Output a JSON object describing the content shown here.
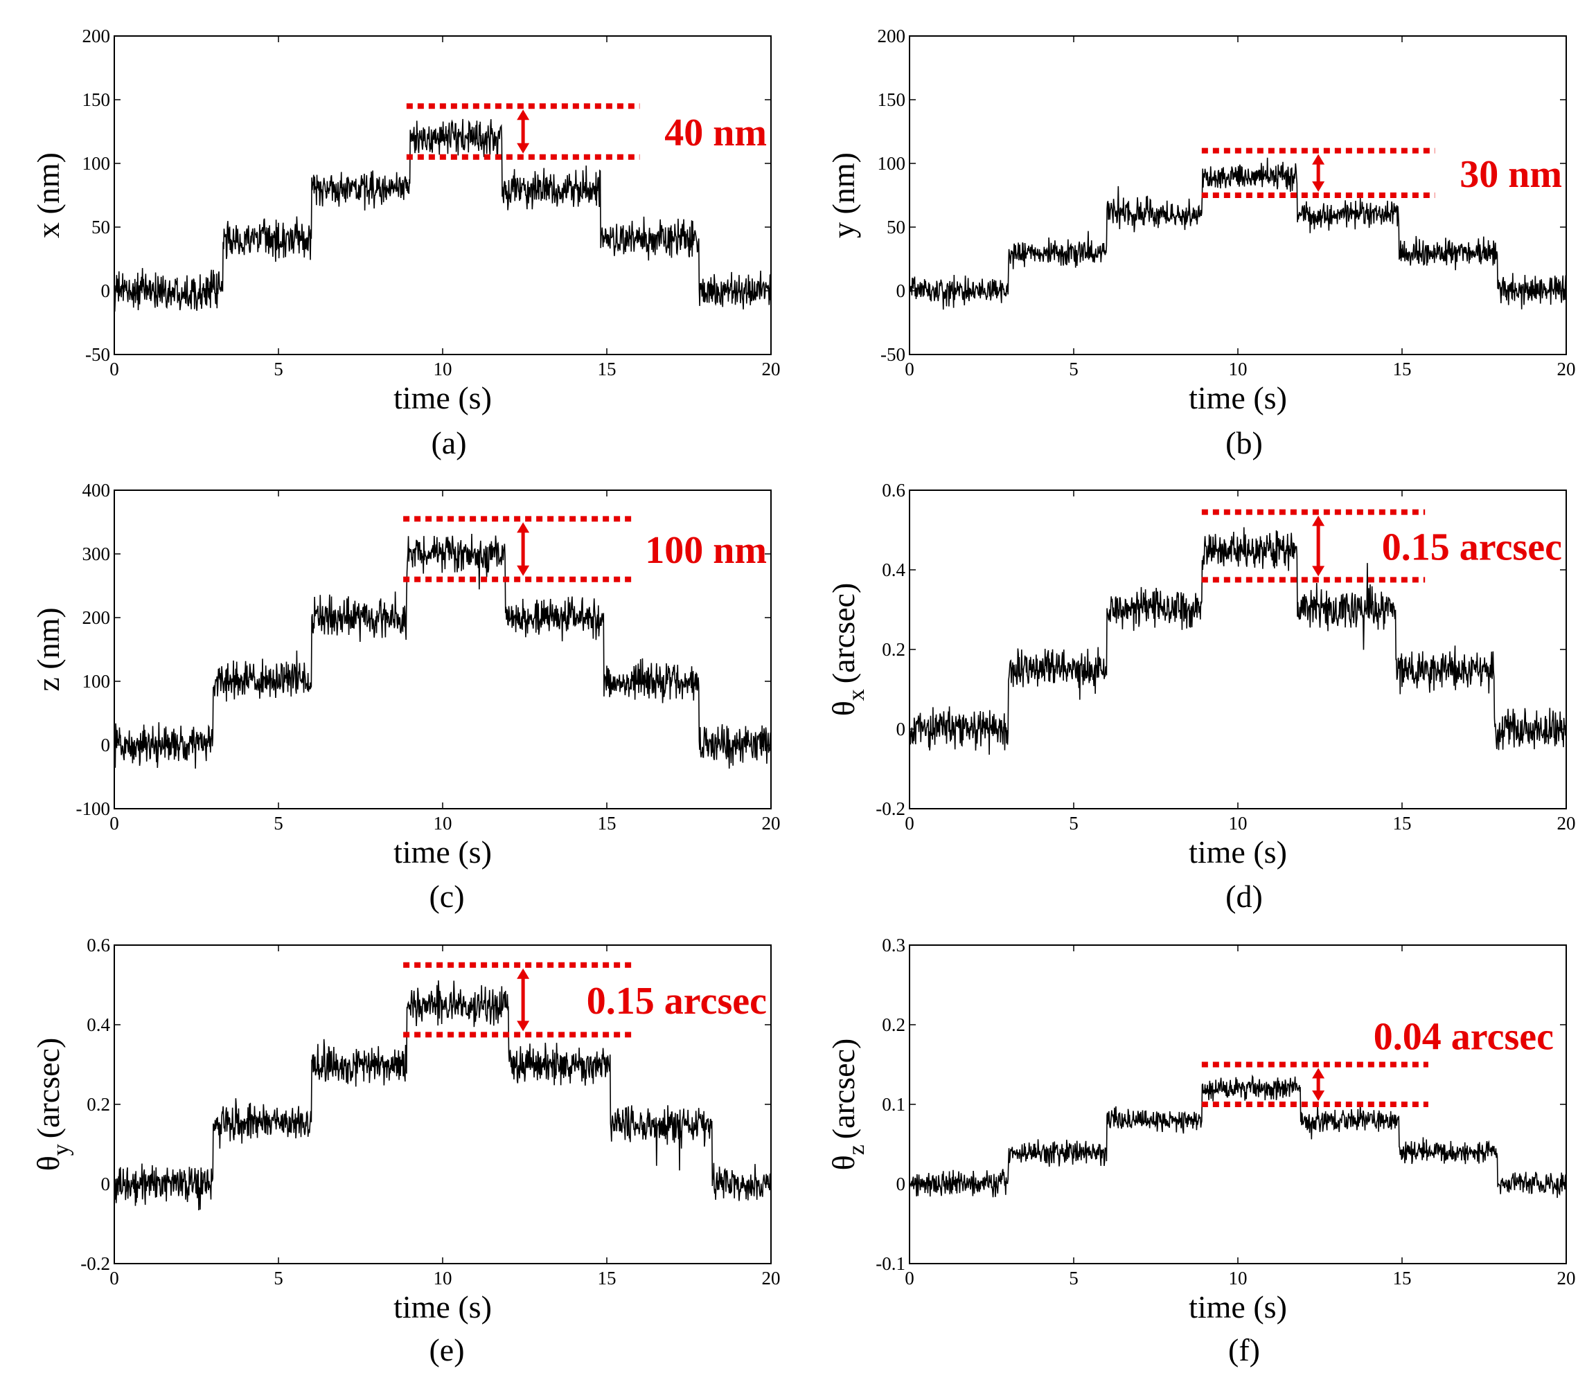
{
  "annotation_color": "#e60000",
  "trace_color": "#000000",
  "chart_data": [
    {
      "panel": "(a)",
      "type": "line",
      "xlabel": "time (s)",
      "ylabel_main": "x (nm)",
      "ylabel_sub": "",
      "xlim": [
        0,
        20
      ],
      "ylim": [
        -50,
        200
      ],
      "xticks": [
        0,
        5,
        10,
        15,
        20
      ],
      "xtick_labels": [
        "0",
        "5",
        "10",
        "15",
        "20"
      ],
      "yticks": [
        -50,
        0,
        50,
        100,
        150,
        200
      ],
      "ytick_labels": [
        "-50",
        "0",
        "50",
        "100",
        "150",
        "200"
      ],
      "step_times": [
        0,
        3.3,
        6,
        9,
        11.8,
        14.8,
        17.8,
        20
      ],
      "step_levels": [
        0,
        40,
        80,
        120,
        80,
        40,
        0
      ],
      "noise_amplitude": 12,
      "annotation": {
        "text": "40 nm",
        "upper": 145,
        "lower": 105,
        "x_start": 8.9,
        "x_end": 16
      }
    },
    {
      "panel": "(b)",
      "type": "line",
      "xlabel": "time (s)",
      "ylabel_main": "y (nm)",
      "ylabel_sub": "",
      "xlim": [
        0,
        20
      ],
      "ylim": [
        -50,
        200
      ],
      "xticks": [
        0,
        5,
        10,
        15,
        20
      ],
      "xtick_labels": [
        "0",
        "5",
        "10",
        "15",
        "20"
      ],
      "yticks": [
        -50,
        0,
        50,
        100,
        150,
        200
      ],
      "ytick_labels": [
        "-50",
        "0",
        "50",
        "100",
        "150",
        "200"
      ],
      "step_times": [
        0,
        3,
        6,
        8.9,
        11.8,
        14.9,
        17.9,
        20
      ],
      "step_levels": [
        0,
        30,
        60,
        90,
        60,
        30,
        0
      ],
      "noise_amplitude": 9,
      "annotation": {
        "text": "30 nm",
        "upper": 110,
        "lower": 75,
        "x_start": 8.9,
        "x_end": 16
      }
    },
    {
      "panel": "(c)",
      "type": "line",
      "xlabel": "time (s)",
      "ylabel_main": "z (nm)",
      "ylabel_sub": "",
      "xlim": [
        0,
        20
      ],
      "ylim": [
        -100,
        400
      ],
      "xticks": [
        0,
        5,
        10,
        15,
        20
      ],
      "xtick_labels": [
        "0",
        "5",
        "10",
        "15",
        "20"
      ],
      "yticks": [
        -100,
        0,
        100,
        200,
        300,
        400
      ],
      "ytick_labels": [
        "-100",
        "0",
        "100",
        "200",
        "300",
        "400"
      ],
      "step_times": [
        0,
        3,
        6,
        8.9,
        11.9,
        14.9,
        17.8,
        20
      ],
      "step_levels": [
        0,
        100,
        200,
        300,
        200,
        100,
        0
      ],
      "noise_amplitude": 25,
      "annotation": {
        "text": "100 nm",
        "upper": 355,
        "lower": 260,
        "x_start": 8.8,
        "x_end": 15.8
      }
    },
    {
      "panel": "(d)",
      "type": "line",
      "xlabel": "time (s)",
      "ylabel_main": "θ",
      "ylabel_sub": "x",
      "ylabel_unit": "(arcsec)",
      "xlim": [
        0,
        20
      ],
      "ylim": [
        -0.2,
        0.6
      ],
      "xticks": [
        0,
        5,
        10,
        15,
        20
      ],
      "xtick_labels": [
        "0",
        "5",
        "10",
        "15",
        "20"
      ],
      "yticks": [
        -0.2,
        0,
        0.2,
        0.4,
        0.6
      ],
      "ytick_labels": [
        "-0.2",
        "0",
        "0.2",
        "0.4",
        "0.6"
      ],
      "step_times": [
        0,
        3,
        6,
        8.9,
        11.8,
        14.8,
        17.8,
        20
      ],
      "step_levels": [
        0,
        0.15,
        0.3,
        0.45,
        0.3,
        0.15,
        0
      ],
      "noise_amplitude": 0.04,
      "annotation": {
        "text": "0.15 arcsec",
        "upper": 0.545,
        "lower": 0.375,
        "x_start": 8.9,
        "x_end": 15.7
      }
    },
    {
      "panel": "(e)",
      "type": "line",
      "xlabel": "time (s)",
      "ylabel_main": "θ",
      "ylabel_sub": "y",
      "ylabel_unit": "(arcsec)",
      "xlim": [
        0,
        20
      ],
      "ylim": [
        -0.2,
        0.6
      ],
      "xticks": [
        0,
        5,
        10,
        15,
        20
      ],
      "xtick_labels": [
        "0",
        "5",
        "10",
        "15",
        "20"
      ],
      "yticks": [
        -0.2,
        0,
        0.2,
        0.4,
        0.6
      ],
      "ytick_labels": [
        "-0.2",
        "0",
        "0.2",
        "0.4",
        "0.6"
      ],
      "step_times": [
        0,
        3,
        6,
        8.9,
        12,
        15.1,
        18.2,
        20
      ],
      "step_levels": [
        0,
        0.15,
        0.3,
        0.45,
        0.3,
        0.15,
        0
      ],
      "noise_amplitude": 0.04,
      "annotation": {
        "text": "0.15 arcsec",
        "upper": 0.55,
        "lower": 0.375,
        "x_start": 8.8,
        "x_end": 15.8
      }
    },
    {
      "panel": "(f)",
      "type": "line",
      "xlabel": "time (s)",
      "ylabel_main": "θ",
      "ylabel_sub": "z",
      "ylabel_unit": "(arcsec)",
      "xlim": [
        0,
        20
      ],
      "ylim": [
        -0.1,
        0.3
      ],
      "xticks": [
        0,
        5,
        10,
        15,
        20
      ],
      "xtick_labels": [
        "0",
        "5",
        "10",
        "15",
        "20"
      ],
      "yticks": [
        -0.1,
        0,
        0.1,
        0.2,
        0.3
      ],
      "ytick_labels": [
        "-0.1",
        "0",
        "0.1",
        "0.2",
        "0.3"
      ],
      "step_times": [
        0,
        3,
        6,
        8.9,
        11.9,
        14.9,
        17.9,
        20
      ],
      "step_levels": [
        0,
        0.04,
        0.08,
        0.12,
        0.08,
        0.04,
        0
      ],
      "noise_amplitude": 0.012,
      "annotation": {
        "text": "0.04 arcsec",
        "upper": 0.15,
        "lower": 0.1,
        "x_start": 8.9,
        "x_end": 15.8
      }
    }
  ]
}
